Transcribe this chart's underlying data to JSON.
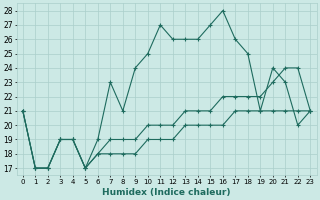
{
  "xlabel": "Humidex (Indice chaleur)",
  "bg_color": "#cce9e5",
  "grid_color": "#aacfcb",
  "line_color": "#1e6b5e",
  "xlim": [
    -0.5,
    23.5
  ],
  "ylim": [
    16.5,
    28.5
  ],
  "yticks": [
    17,
    18,
    19,
    20,
    21,
    22,
    23,
    24,
    25,
    26,
    27,
    28
  ],
  "xticks": [
    0,
    1,
    2,
    3,
    4,
    5,
    6,
    7,
    8,
    9,
    10,
    11,
    12,
    13,
    14,
    15,
    16,
    17,
    18,
    19,
    20,
    21,
    22,
    23
  ],
  "line1": [
    21,
    17,
    17,
    19,
    19,
    17,
    19,
    23,
    21,
    24,
    25,
    27,
    26,
    26,
    26,
    27,
    28,
    26,
    25,
    21,
    24,
    23,
    20,
    21
  ],
  "line2": [
    21,
    17,
    17,
    19,
    19,
    17,
    18,
    19,
    19,
    19,
    20,
    20,
    20,
    21,
    21,
    21,
    22,
    22,
    22,
    22,
    23,
    24,
    24,
    21
  ],
  "line3": [
    21,
    17,
    17,
    19,
    19,
    17,
    18,
    18,
    18,
    18,
    19,
    19,
    19,
    20,
    20,
    20,
    20,
    21,
    21,
    21,
    21,
    21,
    21,
    21
  ]
}
